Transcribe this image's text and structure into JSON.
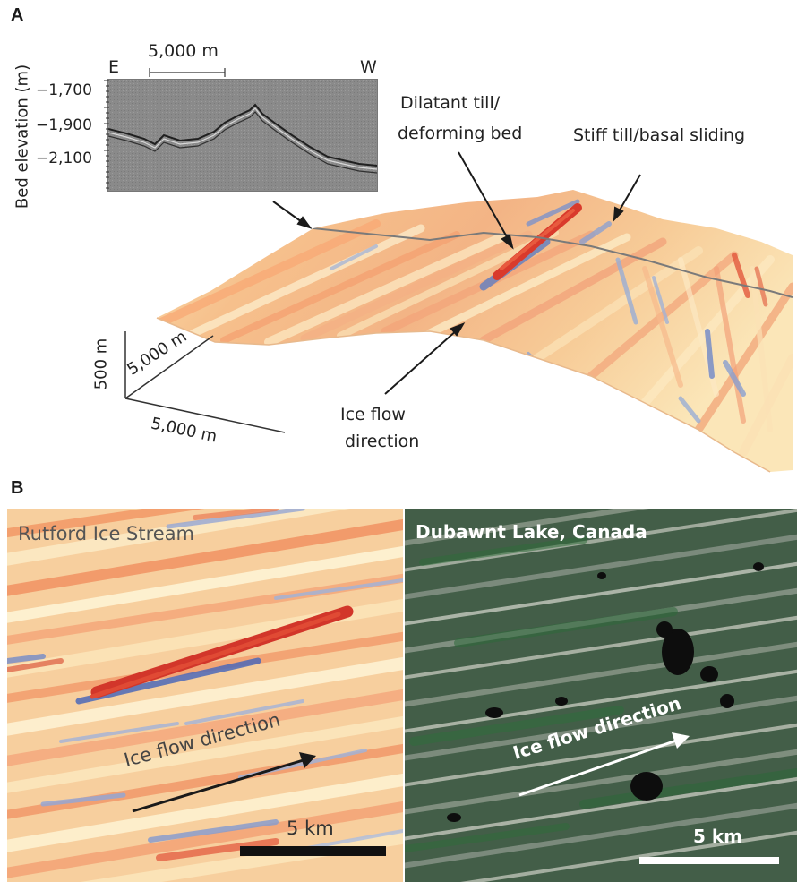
{
  "panel_a": {
    "letter": "A",
    "profile": {
      "y_axis_label": "Bed elevation (m)",
      "ticks": [
        "−1,700",
        "−1,900",
        "−2,100"
      ],
      "left_end": "E",
      "right_end": "W",
      "scale_label": "5,000 m"
    },
    "annotations": {
      "dilatant_line1": "Dilatant till/",
      "dilatant_line2": "deforming bed",
      "stiff": "Stiff till/basal sliding",
      "ice_flow_line1": "Ice flow",
      "ice_flow_line2": "direction"
    },
    "axes_3d": {
      "vertical": "500 m",
      "depth": "5,000 m",
      "horizontal": "5,000 m"
    }
  },
  "panel_b": {
    "letter": "B",
    "left": {
      "title": "Rutford Ice Stream",
      "arrow_label": "Ice flow direction",
      "scale_label": "5 km"
    },
    "right": {
      "title": "Dubawnt Lake, Canada",
      "arrow_label": "Ice flow direction",
      "scale_label": "5 km"
    }
  }
}
